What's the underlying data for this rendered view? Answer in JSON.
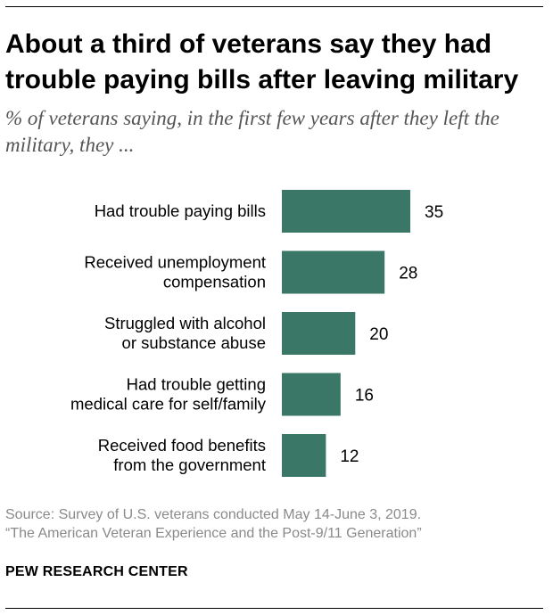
{
  "title": "About a third of veterans say they had trouble paying bills after leaving military",
  "subtitle": "% of veterans saying, in the first few years after they left the military, they ...",
  "source": {
    "line1": "Source: Survey of U.S. veterans conducted May 14-June 3, 2019.",
    "line2": "“The American Veteran Experience and the Post-9/11 Generation”"
  },
  "brand": "PEW RESEARCH CENTER",
  "colors": {
    "bar": "#3a7767",
    "title": "#000000",
    "subtitle": "#555555",
    "source": "#8a8a8a"
  },
  "chart_data": {
    "type": "bar",
    "orientation": "horizontal",
    "categories": [
      [
        "Had trouble paying bills"
      ],
      [
        "Received unemployment",
        "compensation"
      ],
      [
        "Struggled with alcohol",
        "or substance abuse"
      ],
      [
        "Had trouble getting",
        "medical care for self/family"
      ],
      [
        "Received food benefits",
        "from the government"
      ]
    ],
    "values": [
      35,
      28,
      20,
      16,
      12
    ],
    "title": "About a third of veterans say they had trouble paying bills after leaving military",
    "xlabel": "",
    "ylabel": "",
    "xlim": [
      0,
      35
    ],
    "grid": false,
    "legend": "none"
  }
}
